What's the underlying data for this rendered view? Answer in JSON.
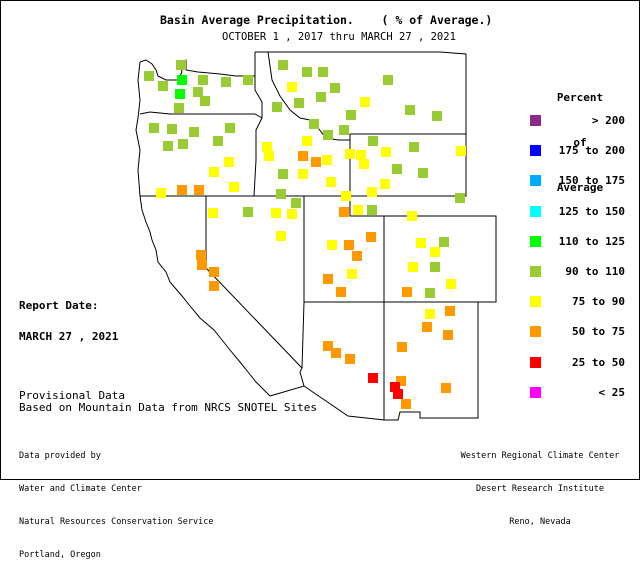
{
  "title": "Basin Average Precipitation.    ( % of Average.)",
  "subtitle": "OCTOBER 1 , 2017 thru MARCH 27 , 2021",
  "legend": {
    "title_lines": [
      "Percent",
      "of",
      "Average"
    ],
    "items": [
      {
        "label": "> 200",
        "color": "#8b2a8b"
      },
      {
        "label": "175 to 200",
        "color": "#0000ff"
      },
      {
        "label": "150 to 175",
        "color": "#00aaff"
      },
      {
        "label": "125 to 150",
        "color": "#00ffff"
      },
      {
        "label": "110 to 125",
        "color": "#00ff00"
      },
      {
        "label": "90 to 110",
        "color": "#99cc33"
      },
      {
        "label": "75 to 90",
        "color": "#ffff00"
      },
      {
        "label": "50 to 75",
        "color": "#ff9900"
      },
      {
        "label": "25 to 50",
        "color": "#ff0000"
      },
      {
        "label": "< 25",
        "color": "#ff00ff"
      }
    ]
  },
  "report": {
    "label": "Report Date:",
    "date": "MARCH 27 , 2021"
  },
  "notes": {
    "line1": "Provisional Data",
    "line2": "Based on Mountain Data from NRCS SNOTEL Sites"
  },
  "credits_left": {
    "line1": "Data provided by",
    "line2": "Water and Climate Center",
    "line3": "Natural Resources Conservation Service",
    "line4": "Portland, Oregon"
  },
  "credits_right": {
    "line1": "Western Regional Climate Center",
    "line2": "Desert Research Institute",
    "line3": "Reno, Nevada"
  },
  "colors": {
    "gt200": "#8b2a8b",
    "175_200": "#0000ff",
    "150_175": "#00aaff",
    "125_150": "#00ffff",
    "110_125": "#00ff00",
    "90_110": "#99cc33",
    "75_90": "#ffff00",
    "50_75": "#ff9900",
    "25_50": "#ff0000",
    "lt25": "#ff00ff"
  }
}
